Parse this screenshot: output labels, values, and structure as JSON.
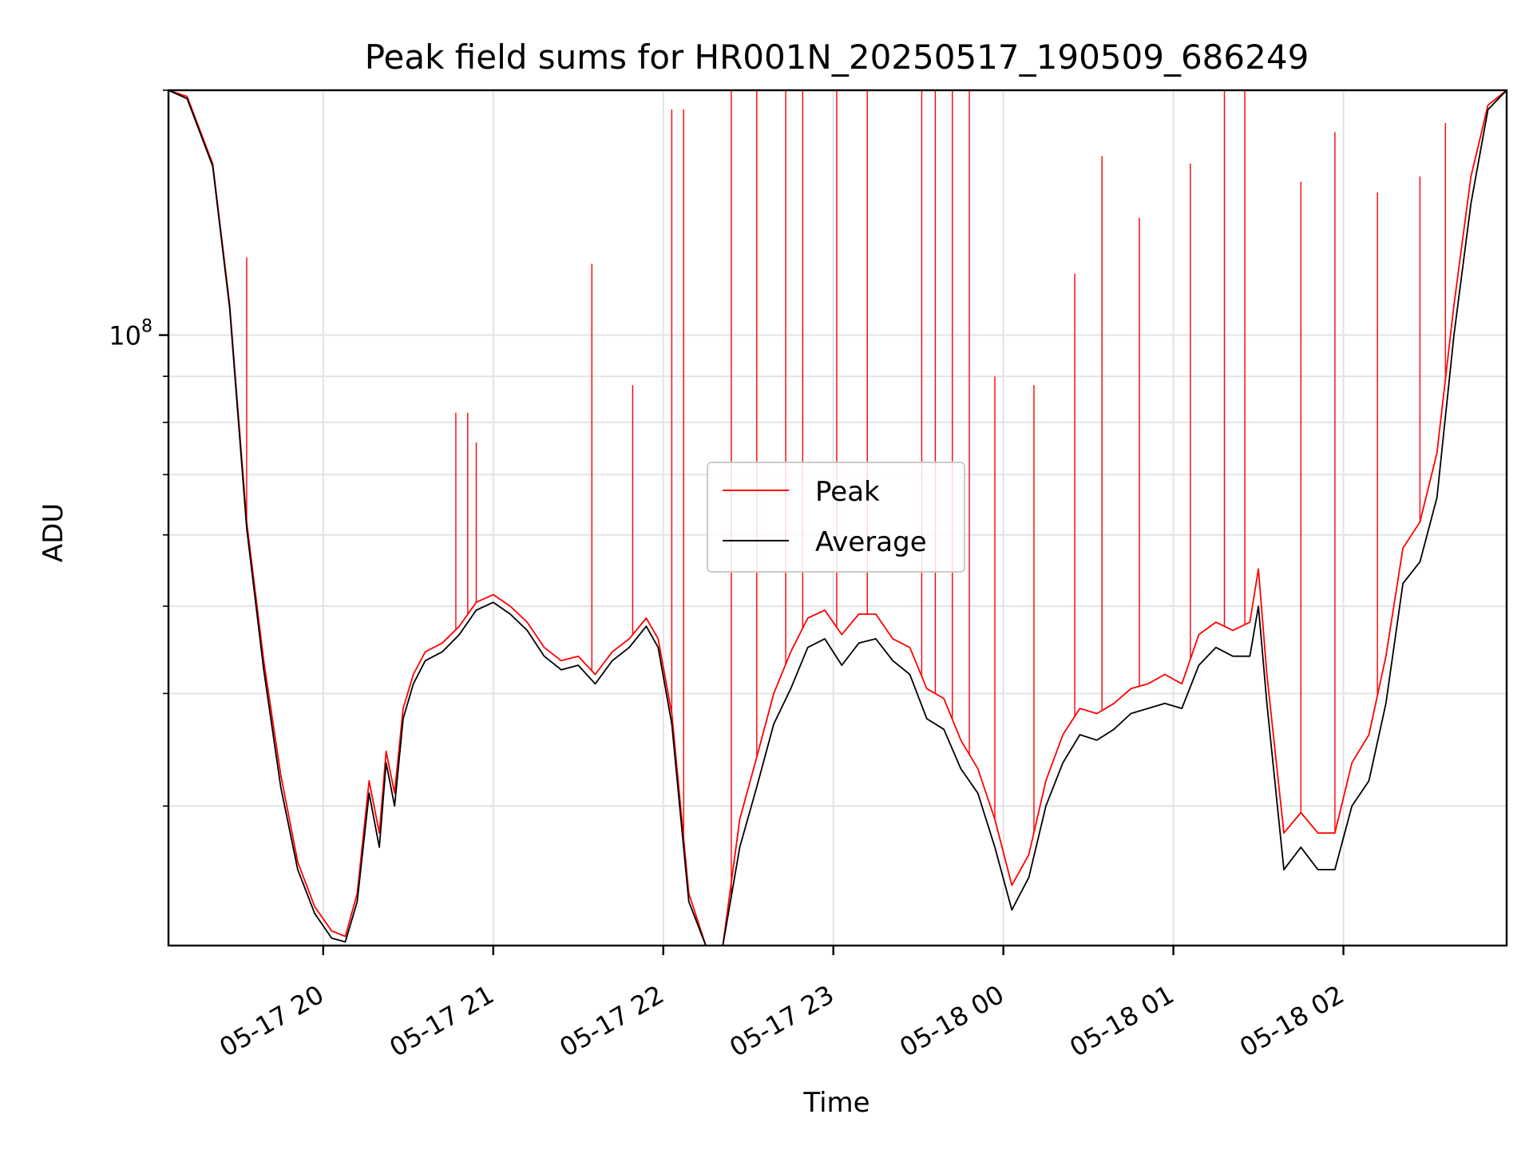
{
  "chart_data": {
    "type": "line",
    "title": "Peak field sums for HR001N_20250517_190509_686249",
    "xlabel": "Time",
    "ylabel": "ADU",
    "y_scale": "log",
    "ylim": [
      21000000,
      187000000
    ],
    "y_tick_label": {
      "base": "10",
      "exponent": "8",
      "value": 100000000
    },
    "y_minor_ticks": [
      30000000,
      40000000,
      50000000,
      60000000,
      70000000,
      80000000,
      90000000,
      200000000
    ],
    "x_tick_labels": [
      "05-17 20",
      "05-17 21",
      "05-17 22",
      "05-17 23",
      "05-18 00",
      "05-18 01",
      "05-18 02"
    ],
    "x_tick_hours": [
      20,
      21,
      22,
      23,
      24,
      25,
      26
    ],
    "xlim_hours": [
      19.09,
      26.96
    ],
    "grid": true,
    "legend_position": "center",
    "series": [
      {
        "name": "Peak",
        "color": "#ff0000",
        "x_hours": [
          19.09,
          19.2,
          19.35,
          19.45,
          19.55,
          19.65,
          19.75,
          19.85,
          19.95,
          20.05,
          20.13,
          20.2,
          20.27,
          20.33,
          20.37,
          20.42,
          20.47,
          20.53,
          20.6,
          20.7,
          20.8,
          20.9,
          21.0,
          21.1,
          21.2,
          21.3,
          21.4,
          21.5,
          21.6,
          21.7,
          21.8,
          21.9,
          21.97,
          22.05,
          22.15,
          22.25,
          22.35,
          22.45,
          22.55,
          22.65,
          22.75,
          22.85,
          22.95,
          23.05,
          23.15,
          23.25,
          23.35,
          23.45,
          23.55,
          23.65,
          23.75,
          23.85,
          23.95,
          24.05,
          24.15,
          24.25,
          24.35,
          24.45,
          24.55,
          24.65,
          24.75,
          24.85,
          24.95,
          25.05,
          25.15,
          25.25,
          25.35,
          25.45,
          25.5,
          25.55,
          25.65,
          25.75,
          25.85,
          25.95,
          26.05,
          26.15,
          26.25,
          26.35,
          26.45,
          26.55,
          26.65,
          26.75,
          26.85,
          26.96
        ],
        "values": [
          188000000,
          184000000,
          155000000,
          108000000,
          62000000,
          43500000,
          32500000,
          26000000,
          23200000,
          21800000,
          21500000,
          24000000,
          32000000,
          28000000,
          34500000,
          31000000,
          38500000,
          42000000,
          44500000,
          45500000,
          47500000,
          50500000,
          51500000,
          50000000,
          48000000,
          45000000,
          43500000,
          44000000,
          42000000,
          44500000,
          46000000,
          48500000,
          46000000,
          38000000,
          24000000,
          19800000,
          19600000,
          29000000,
          34000000,
          40000000,
          44500000,
          48500000,
          49500000,
          46500000,
          49000000,
          49000000,
          46000000,
          45000000,
          40500000,
          39500000,
          35500000,
          33000000,
          29000000,
          24500000,
          26500000,
          32000000,
          36000000,
          38500000,
          38000000,
          39000000,
          40500000,
          41000000,
          42000000,
          41000000,
          46500000,
          48000000,
          47000000,
          48000000,
          55000000,
          42000000,
          28000000,
          29500000,
          28000000,
          28000000,
          33500000,
          36000000,
          44000000,
          58000000,
          62000000,
          74000000,
          108000000,
          150000000,
          180000000,
          188000000
        ],
        "spikes": [
          {
            "x_hour": 19.55,
            "value": 122000000
          },
          {
            "x_hour": 20.78,
            "value": 82000000
          },
          {
            "x_hour": 20.85,
            "value": 82000000
          },
          {
            "x_hour": 20.9,
            "value": 76000000
          },
          {
            "x_hour": 21.58,
            "value": 120000000
          },
          {
            "x_hour": 21.82,
            "value": 88000000
          },
          {
            "x_hour": 22.05,
            "value": 178000000
          },
          {
            "x_hour": 22.12,
            "value": 178000000
          },
          {
            "x_hour": 22.4,
            "value": 188000000
          },
          {
            "x_hour": 22.55,
            "value": 188000000
          },
          {
            "x_hour": 22.72,
            "value": 188000000
          },
          {
            "x_hour": 22.82,
            "value": 188000000
          },
          {
            "x_hour": 23.02,
            "value": 188000000
          },
          {
            "x_hour": 23.2,
            "value": 188000000
          },
          {
            "x_hour": 23.52,
            "value": 188000000
          },
          {
            "x_hour": 23.6,
            "value": 188000000
          },
          {
            "x_hour": 23.7,
            "value": 188000000
          },
          {
            "x_hour": 23.8,
            "value": 188000000
          },
          {
            "x_hour": 23.95,
            "value": 90000000
          },
          {
            "x_hour": 24.18,
            "value": 88000000
          },
          {
            "x_hour": 24.42,
            "value": 117000000
          },
          {
            "x_hour": 24.58,
            "value": 158000000
          },
          {
            "x_hour": 24.8,
            "value": 135000000
          },
          {
            "x_hour": 25.1,
            "value": 155000000
          },
          {
            "x_hour": 25.3,
            "value": 188000000
          },
          {
            "x_hour": 25.42,
            "value": 188000000
          },
          {
            "x_hour": 25.75,
            "value": 148000000
          },
          {
            "x_hour": 25.95,
            "value": 168000000
          },
          {
            "x_hour": 26.2,
            "value": 144000000
          },
          {
            "x_hour": 26.45,
            "value": 150000000
          },
          {
            "x_hour": 26.6,
            "value": 172000000
          }
        ]
      },
      {
        "name": "Average",
        "color": "#000000",
        "x_hours": [
          19.09,
          19.2,
          19.35,
          19.45,
          19.55,
          19.65,
          19.75,
          19.85,
          19.95,
          20.05,
          20.13,
          20.2,
          20.27,
          20.33,
          20.37,
          20.42,
          20.47,
          20.53,
          20.6,
          20.7,
          20.8,
          20.9,
          21.0,
          21.1,
          21.2,
          21.3,
          21.4,
          21.5,
          21.6,
          21.7,
          21.8,
          21.9,
          21.97,
          22.05,
          22.15,
          22.25,
          22.35,
          22.45,
          22.55,
          22.65,
          22.75,
          22.85,
          22.95,
          23.05,
          23.15,
          23.25,
          23.35,
          23.45,
          23.55,
          23.65,
          23.75,
          23.85,
          23.95,
          24.05,
          24.15,
          24.25,
          24.35,
          24.45,
          24.55,
          24.65,
          24.75,
          24.85,
          24.95,
          25.05,
          25.15,
          25.25,
          25.35,
          25.45,
          25.5,
          25.55,
          25.65,
          25.75,
          25.85,
          25.95,
          26.05,
          26.15,
          26.25,
          26.35,
          26.45,
          26.55,
          26.65,
          26.75,
          26.85,
          26.96
        ],
        "values": [
          188000000,
          183000000,
          154000000,
          107000000,
          61000000,
          42500000,
          31500000,
          25500000,
          22800000,
          21400000,
          21200000,
          23500000,
          31000000,
          27000000,
          33500000,
          30000000,
          37500000,
          41000000,
          43500000,
          44500000,
          46500000,
          49500000,
          50500000,
          49000000,
          47000000,
          44000000,
          42500000,
          43000000,
          41000000,
          43500000,
          45000000,
          47500000,
          45000000,
          37000000,
          23500000,
          19400000,
          19200000,
          27000000,
          31500000,
          37000000,
          40500000,
          45000000,
          46000000,
          43000000,
          45500000,
          46000000,
          43500000,
          42000000,
          37500000,
          36500000,
          33000000,
          31000000,
          27000000,
          23000000,
          25000000,
          30000000,
          33500000,
          36000000,
          35500000,
          36500000,
          38000000,
          38500000,
          39000000,
          38500000,
          43000000,
          45000000,
          44000000,
          44000000,
          50000000,
          39000000,
          25500000,
          27000000,
          25500000,
          25500000,
          30000000,
          32000000,
          39000000,
          53000000,
          56000000,
          66000000,
          100000000,
          140000000,
          178000000,
          188000000
        ]
      }
    ]
  }
}
